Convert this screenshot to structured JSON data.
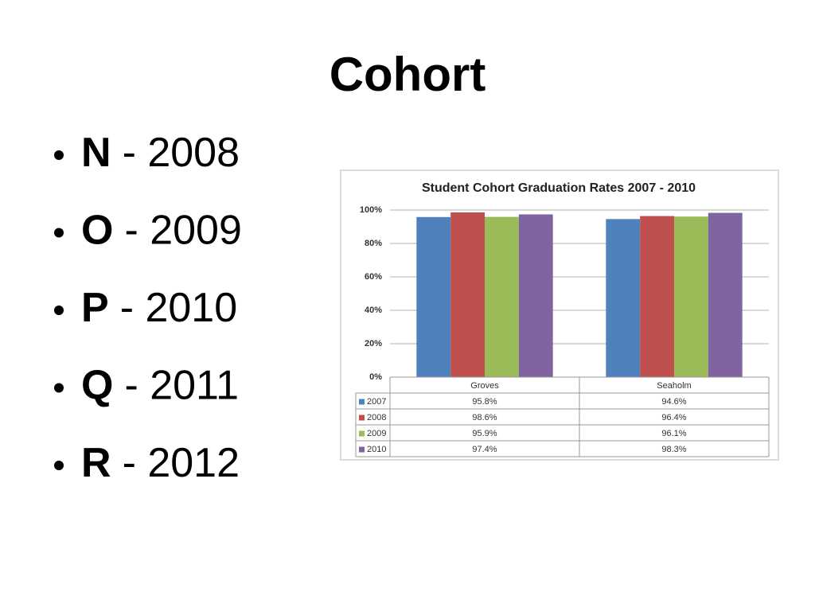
{
  "title": "Cohort",
  "bullets": [
    {
      "key": "N",
      "text": "- 2008"
    },
    {
      "key": "O",
      "text": "- 2009"
    },
    {
      "key": "P",
      "text": "- 2010"
    },
    {
      "key": "Q",
      "text": "- 2011"
    },
    {
      "key": "R",
      "text": "- 2012"
    }
  ],
  "chart_data": {
    "type": "bar",
    "title": "Student Cohort Graduation Rates 2007 - 2010",
    "categories": [
      "Groves",
      "Seaholm"
    ],
    "series": [
      {
        "name": "2007",
        "color": "#4f81bd",
        "values": [
          95.8,
          94.6
        ],
        "value_labels": [
          "95.8%",
          "94.6%"
        ]
      },
      {
        "name": "2008",
        "color": "#c0504d",
        "values": [
          98.6,
          96.4
        ],
        "value_labels": [
          "98.6%",
          "96.4%"
        ]
      },
      {
        "name": "2009",
        "color": "#9bbb59",
        "values": [
          95.9,
          96.1
        ],
        "value_labels": [
          "95.9%",
          "96.1%"
        ]
      },
      {
        "name": "2010",
        "color": "#8064a2",
        "values": [
          97.4,
          98.3
        ],
        "value_labels": [
          "97.4%",
          "98.3%"
        ]
      }
    ],
    "ylim": [
      0,
      100
    ],
    "yticks": [
      {
        "value": 0,
        "label": "0%"
      },
      {
        "value": 20,
        "label": "20%"
      },
      {
        "value": 40,
        "label": "40%"
      },
      {
        "value": 60,
        "label": "60%"
      },
      {
        "value": 80,
        "label": "80%"
      },
      {
        "value": 100,
        "label": "100%"
      }
    ],
    "grid": true
  }
}
